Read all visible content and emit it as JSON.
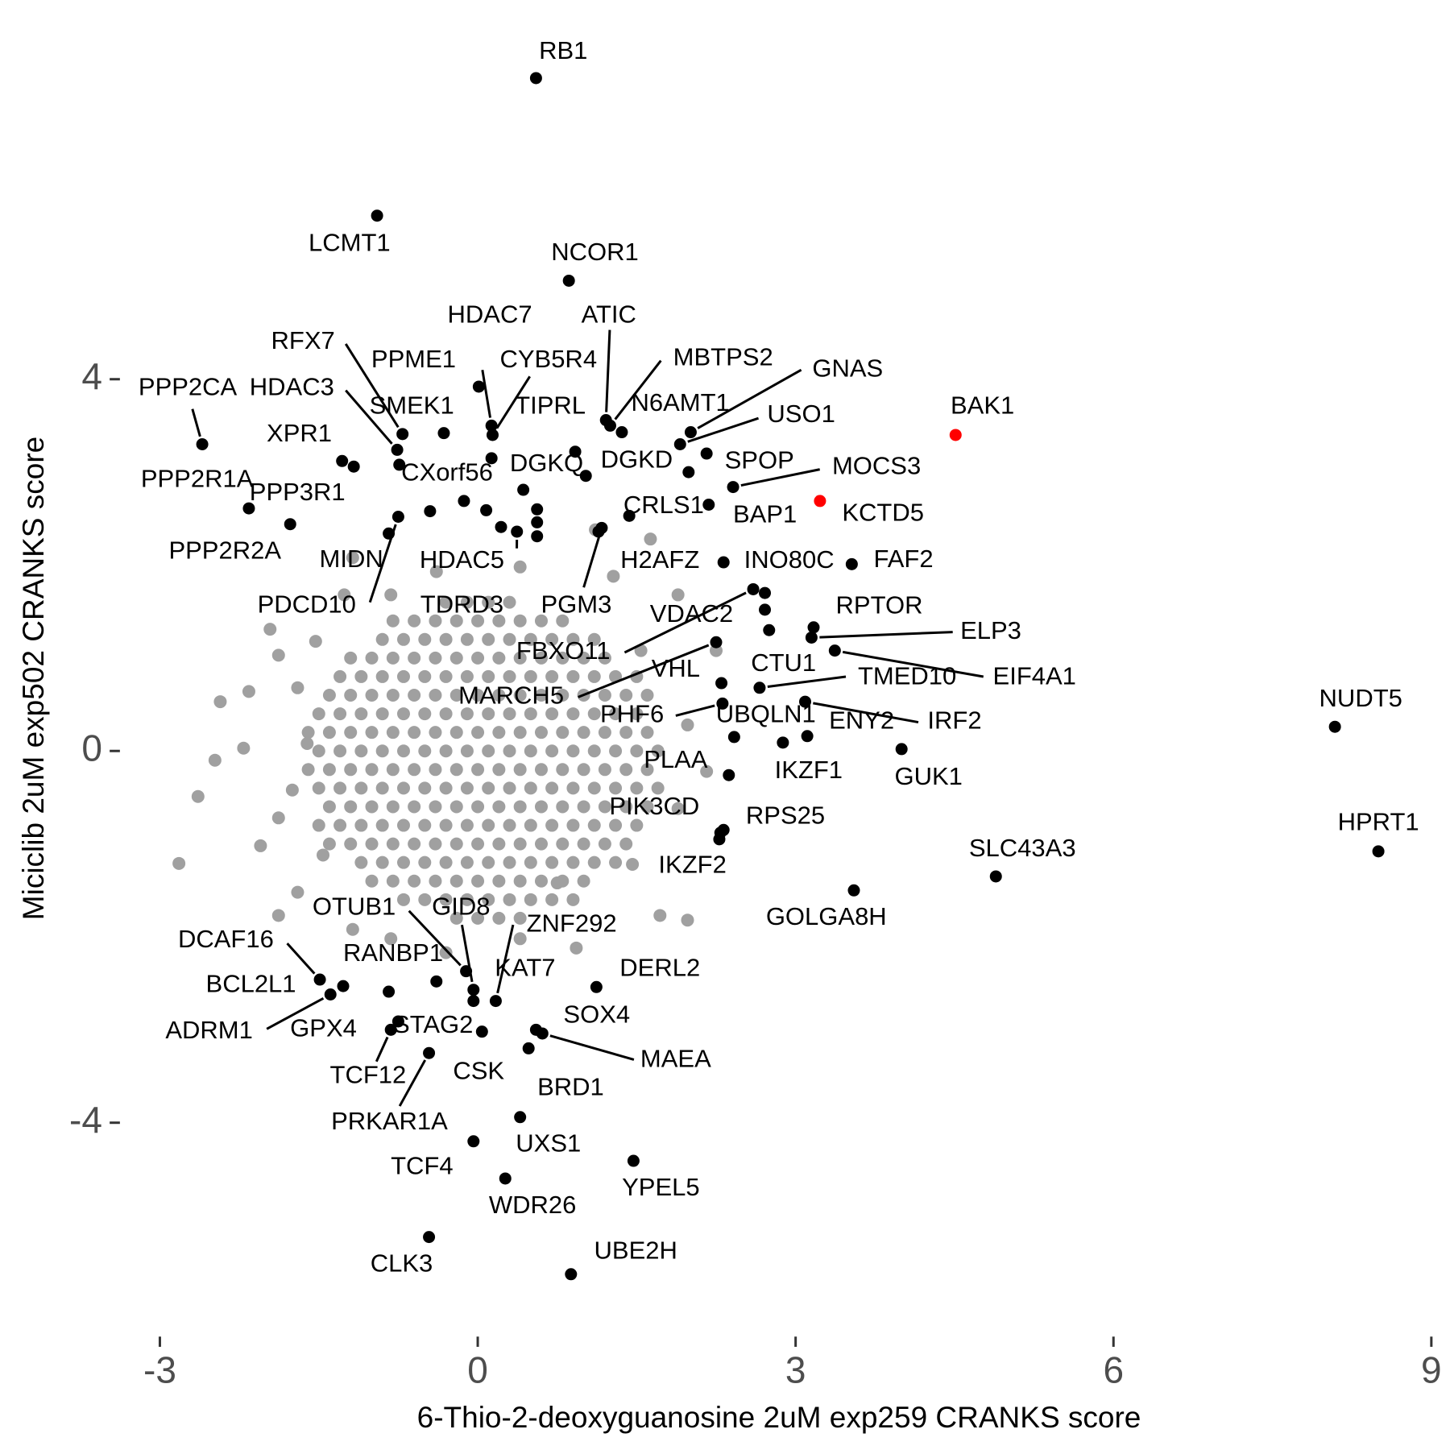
{
  "chart_data": {
    "type": "scatter",
    "x_label": "6-Thio-2-deoxyguanosine 2uM exp259 CRANKS score",
    "y_label": "Miciclib 2uM exp502 CRANKS score",
    "xlim": [
      -3.3,
      9.1
    ],
    "ylim": [
      -6.1,
      7.9
    ],
    "xticks": [
      -3,
      0,
      3,
      6,
      9
    ],
    "yticks": [
      -4,
      0,
      4
    ],
    "grid": false,
    "series": [
      {
        "color": "#a0a0a0",
        "x": [
          -0.3,
          -0.1,
          0.1,
          0.3,
          -0.8,
          -0.6,
          -0.4,
          -0.2,
          0,
          0.2,
          0.4,
          0.6,
          0.8,
          -0.9,
          -0.7,
          -0.5,
          -0.3,
          -0.1,
          0.1,
          0.3,
          0.5,
          0.7,
          0.9,
          1.1,
          -1.2,
          -1,
          -0.8,
          -0.6,
          -0.4,
          -0.2,
          0,
          0.2,
          0.4,
          0.6,
          0.8,
          1,
          1.2,
          -1.3,
          -1.1,
          -0.9,
          -0.7,
          -0.5,
          -0.3,
          -0.1,
          0.1,
          0.3,
          0.5,
          0.7,
          0.9,
          1.1,
          1.3,
          1.5,
          -1.4,
          -1.2,
          -1,
          -0.8,
          -0.6,
          -0.4,
          -0.2,
          0,
          0.2,
          0.4,
          0.6,
          0.8,
          1,
          1.2,
          1.4,
          1.6,
          -1.5,
          -1.3,
          -1.1,
          -0.9,
          -0.7,
          -0.5,
          -0.3,
          -0.1,
          0.1,
          0.3,
          0.5,
          0.7,
          0.9,
          1.1,
          1.3,
          1.5,
          -1.6,
          -1.4,
          -1.2,
          -1,
          -0.8,
          -0.6,
          -0.4,
          -0.2,
          0,
          0.2,
          0.4,
          0.6,
          0.8,
          1,
          1.2,
          1.4,
          1.6,
          -1.5,
          -1.3,
          -1.1,
          -0.9,
          -0.7,
          -0.5,
          -0.3,
          -0.1,
          0.1,
          0.3,
          0.5,
          0.7,
          0.9,
          1.1,
          1.3,
          1.5,
          1.7,
          -1.6,
          -1.4,
          -1.2,
          -1,
          -0.8,
          -0.6,
          -0.4,
          -0.2,
          0,
          0.2,
          0.4,
          0.6,
          0.8,
          1,
          1.2,
          1.4,
          1.6,
          -1.5,
          -1.3,
          -1.1,
          -0.9,
          -0.7,
          -0.5,
          -0.3,
          -0.1,
          0.1,
          0.3,
          0.5,
          0.7,
          0.9,
          1.1,
          1.3,
          1.5,
          1.7,
          -1.4,
          -1.2,
          -1,
          -0.8,
          -0.6,
          -0.4,
          -0.2,
          0,
          0.2,
          0.4,
          0.6,
          0.8,
          1,
          1.2,
          1.4,
          1.6,
          -1.5,
          -1.3,
          -1.1,
          -0.9,
          -0.7,
          -0.5,
          -0.3,
          -0.1,
          0.1,
          0.3,
          0.5,
          0.7,
          0.9,
          1.1,
          1.3,
          1.5,
          -1.4,
          -1.2,
          -1,
          -0.8,
          -0.6,
          -0.4,
          -0.2,
          0,
          0.2,
          0.4,
          0.6,
          0.8,
          1,
          1.2,
          1.4,
          -1.1,
          -0.9,
          -0.7,
          -0.5,
          -0.3,
          -0.1,
          0.1,
          0.3,
          0.5,
          0.7,
          0.9,
          1.1,
          1.3,
          -1,
          -0.8,
          -0.6,
          -0.4,
          -0.2,
          0,
          0.2,
          0.4,
          0.6,
          0.8,
          1,
          -0.7,
          -0.5,
          -0.3,
          -0.1,
          0.1,
          0.3,
          0.5,
          0.7,
          0.9,
          -0.2,
          0,
          0.2,
          0.4,
          -2.64,
          -2.82,
          -2.43,
          -2.16,
          -2.48,
          -1.96,
          -1.88,
          -2.21,
          -1.88,
          -2.05,
          -1.7,
          -1.88,
          -1.18,
          -0.82,
          -0.3,
          0.4,
          0.93,
          1.72,
          1.98,
          1.89,
          2.16,
          1.98,
          2.25,
          1.89,
          1.63,
          1.11,
          -1.18,
          -1.26,
          -1.53,
          -1.7,
          -1.61,
          -1.75,
          -1.46,
          0.75,
          1.46,
          1.54,
          1.28,
          0.4,
          -0.39,
          -0.82
        ],
        "values": [
          1.6,
          1.6,
          1.6,
          1.6,
          1.4,
          1.4,
          1.4,
          1.4,
          1.4,
          1.4,
          1.4,
          1.4,
          1.4,
          1.2,
          1.2,
          1.2,
          1.2,
          1.2,
          1.2,
          1.2,
          1.2,
          1.2,
          1.2,
          1.2,
          1,
          1,
          1,
          1,
          1,
          1,
          1,
          1,
          1,
          1,
          1,
          1,
          1,
          0.8,
          0.8,
          0.8,
          0.8,
          0.8,
          0.8,
          0.8,
          0.8,
          0.8,
          0.8,
          0.8,
          0.8,
          0.8,
          0.8,
          0.8,
          0.6,
          0.6,
          0.6,
          0.6,
          0.6,
          0.6,
          0.6,
          0.6,
          0.6,
          0.6,
          0.6,
          0.6,
          0.6,
          0.6,
          0.6,
          0.6,
          0.4,
          0.4,
          0.4,
          0.4,
          0.4,
          0.4,
          0.4,
          0.4,
          0.4,
          0.4,
          0.4,
          0.4,
          0.4,
          0.4,
          0.4,
          0.4,
          0.2,
          0.2,
          0.2,
          0.2,
          0.2,
          0.2,
          0.2,
          0.2,
          0.2,
          0.2,
          0.2,
          0.2,
          0.2,
          0.2,
          0.2,
          0.2,
          0.2,
          0,
          0,
          0,
          0,
          0,
          0,
          0,
          0,
          0,
          0,
          0,
          0,
          0,
          0,
          0,
          0,
          0,
          -0.2,
          -0.2,
          -0.2,
          -0.2,
          -0.2,
          -0.2,
          -0.2,
          -0.2,
          -0.2,
          -0.2,
          -0.2,
          -0.2,
          -0.2,
          -0.2,
          -0.2,
          -0.2,
          -0.2,
          -0.4,
          -0.4,
          -0.4,
          -0.4,
          -0.4,
          -0.4,
          -0.4,
          -0.4,
          -0.4,
          -0.4,
          -0.4,
          -0.4,
          -0.4,
          -0.4,
          -0.4,
          -0.4,
          -0.4,
          -0.6,
          -0.6,
          -0.6,
          -0.6,
          -0.6,
          -0.6,
          -0.6,
          -0.6,
          -0.6,
          -0.6,
          -0.6,
          -0.6,
          -0.6,
          -0.6,
          -0.6,
          -0.6,
          -0.8,
          -0.8,
          -0.8,
          -0.8,
          -0.8,
          -0.8,
          -0.8,
          -0.8,
          -0.8,
          -0.8,
          -0.8,
          -0.8,
          -0.8,
          -0.8,
          -0.8,
          -0.8,
          -1,
          -1,
          -1,
          -1,
          -1,
          -1,
          -1,
          -1,
          -1,
          -1,
          -1,
          -1,
          -1,
          -1,
          -1,
          -1.2,
          -1.2,
          -1.2,
          -1.2,
          -1.2,
          -1.2,
          -1.2,
          -1.2,
          -1.2,
          -1.2,
          -1.2,
          -1.2,
          -1.2,
          -1.4,
          -1.4,
          -1.4,
          -1.4,
          -1.4,
          -1.4,
          -1.4,
          -1.4,
          -1.4,
          -1.4,
          -1.4,
          -1.6,
          -1.6,
          -1.6,
          -1.6,
          -1.6,
          -1.6,
          -1.6,
          -1.6,
          -1.6,
          -1.8,
          -1.8,
          -1.8,
          -1.8,
          -0.49,
          -1.21,
          0.53,
          0.64,
          -0.1,
          1.31,
          1.03,
          0.03,
          -0.72,
          -1.02,
          -1.52,
          -1.77,
          -1.92,
          -2.02,
          -2.17,
          -2.02,
          -2.12,
          -1.77,
          -1.82,
          -0.62,
          -0.22,
          0.28,
          1.08,
          1.68,
          2.28,
          2.38,
          2.08,
          1.68,
          1.18,
          0.68,
          0.08,
          -0.42,
          -1.12,
          -1.42,
          -1.22,
          1.08,
          1.88,
          1.98,
          1.93,
          1.68
        ]
      },
      {
        "color": "#000000",
        "x": [
          0.55,
          -0.95,
          0.86,
          -2.6,
          0.01,
          0.13,
          0.14,
          0.13,
          1.21,
          1.25,
          1.36,
          2.01,
          1.91,
          2.16,
          1.02,
          0.43,
          2.41,
          1.43,
          2.18,
          3.53,
          2.32,
          3.17,
          3.15,
          3.37,
          2.75,
          2.66,
          2.71,
          2.6,
          2.3,
          2.25,
          2.31,
          2.42,
          3.11,
          3.09,
          2.88,
          4.0,
          2.37,
          2.29,
          2.32,
          2.28,
          3.55,
          4.89,
          8.09,
          8.5,
          -0.11,
          -0.04,
          0.17,
          -0.04,
          -0.39,
          -1.49,
          -1.27,
          -1.39,
          -0.84,
          -0.75,
          -0.82,
          -0.46,
          0.04,
          1.12,
          0.55,
          0.61,
          0.48,
          0.4,
          -0.04,
          1.47,
          0.26,
          -0.46,
          0.88,
          -0.71,
          -0.76,
          -0.32,
          -1.28,
          -0.74,
          -2.16,
          -0.45,
          -1.77,
          -0.84,
          -0.75,
          0.37,
          0.22,
          1.14,
          1.17,
          2.71,
          -0.13,
          0.08,
          0.56,
          0.56,
          0.56,
          -1.17,
          0.92,
          1.99
        ],
        "values": [
          7.24,
          5.76,
          5.06,
          3.3,
          3.92,
          3.5,
          3.4,
          3.15,
          3.56,
          3.5,
          3.43,
          3.43,
          3.3,
          3.2,
          2.96,
          2.81,
          2.84,
          2.53,
          2.65,
          2.01,
          2.03,
          1.33,
          1.22,
          1.08,
          1.3,
          0.68,
          1.7,
          1.74,
          0.73,
          1.17,
          0.51,
          0.15,
          0.16,
          0.53,
          0.09,
          0.02,
          -0.26,
          -0.88,
          -0.85,
          -0.95,
          -1.5,
          -1.35,
          0.26,
          -1.08,
          -2.37,
          -2.57,
          -2.69,
          -2.69,
          -2.48,
          -2.46,
          -2.53,
          -2.62,
          -2.59,
          -2.91,
          -3.0,
          -3.25,
          -3.02,
          -2.54,
          -3.0,
          -3.04,
          -3.2,
          -3.94,
          -4.2,
          -4.41,
          -4.6,
          -5.23,
          -5.63,
          3.41,
          3.24,
          3.42,
          3.12,
          3.08,
          2.61,
          2.58,
          2.44,
          2.34,
          2.52,
          2.36,
          2.41,
          2.36,
          2.4,
          1.52,
          2.69,
          2.59,
          2.6,
          2.46,
          2.31,
          3.06,
          3.22,
          3.0
        ],
        "labels": [
          "RB1",
          "LCMT1",
          "NCOR1",
          "PPP2CA",
          "PPME1",
          "HDAC7",
          "CYB5R4",
          "TIPRL",
          "ATIC",
          "MBTPS2",
          "N6AMT1",
          "GNAS",
          "USO1",
          "SPOP",
          "DGKD",
          "DGKQ",
          "MOCS3",
          "CRLS1",
          "BAP1",
          "FAF2",
          "INO80C",
          "RPTOR",
          "ELP3",
          "EIF4A1",
          "CTU1",
          "TMED10",
          "VDAC2",
          "FBXO11",
          "VHL",
          "MARCH5",
          "PHF6",
          "UBQLN1",
          "ENY2",
          "IRF2",
          "IKZF1",
          "GUK1",
          "PLAA",
          "PIK3CD",
          "RPS25",
          "IKZF2",
          "GOLGA8H",
          "SLC43A3",
          "NUDT5",
          "HPRT1",
          "OTUB1",
          "GID8",
          "ZNF292",
          "KAT7",
          "RANBP1",
          "DCAF16",
          "BCL2L1",
          "ADRM1",
          "GPX4",
          "STAG2",
          "TCF12",
          "PRKAR1A",
          "CSK",
          "DERL2",
          "SOX4",
          "MAEA",
          "BRD1",
          "UXS1",
          "TCF4",
          "YPEL5",
          "WDR26",
          "CLK3",
          "UBE2H",
          "RFX7",
          "HDAC3",
          "SMEK1",
          "XPR1",
          "CXorf56",
          "PPP2R1A",
          "PPP3R1",
          "PPP2R2A",
          "MIDN",
          "PDCD10",
          "HDAC5",
          "TDRD3",
          "H2AFZ",
          "PGM3",
          null,
          null,
          null,
          null,
          null,
          null,
          null,
          null,
          null
        ]
      },
      {
        "color": "#ff0000",
        "x": [
          4.51,
          3.23
        ],
        "values": [
          3.4,
          2.69
        ],
        "labels": [
          "BAK1",
          "KCTD5"
        ]
      }
    ]
  }
}
